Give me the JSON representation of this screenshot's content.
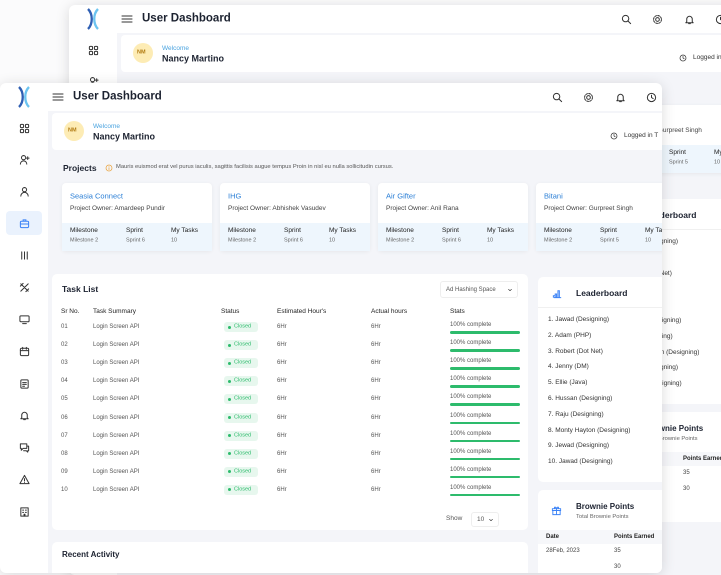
{
  "header": {
    "title": "User Dashboard"
  },
  "welcome": {
    "greeting": "Welcome",
    "name": "Nancy Martino",
    "initials": "NM",
    "logged": "Logged in T"
  },
  "projects": {
    "label": "Projects",
    "note": "Mauris euismod erat vel purus iaculis, sagittis facilisis augue tempus Proin in nisl eu nulla sollicitudin cursus.",
    "cards": [
      {
        "name": "Seasia Connect",
        "owner": "Project Owner: Amardeep Pundir",
        "stats": [
          {
            "label": "Milestone",
            "value": "Milestone 2"
          },
          {
            "label": "Sprint",
            "value": "Sprint 6"
          },
          {
            "label": "My Tasks",
            "value": "10"
          }
        ]
      },
      {
        "name": "IHG",
        "owner": "Project Owner: Abhishek Vasudev",
        "stats": [
          {
            "label": "Milestone",
            "value": "Milestone 2"
          },
          {
            "label": "Sprint",
            "value": "Sprint 6"
          },
          {
            "label": "My Tasks",
            "value": "10"
          }
        ]
      },
      {
        "name": "Air Gifter",
        "owner": "Project Owner: Anil Rana",
        "stats": [
          {
            "label": "Milestone",
            "value": "Milestone 2"
          },
          {
            "label": "Sprint",
            "value": "Sprint 6"
          },
          {
            "label": "My Tasks",
            "value": "10"
          }
        ]
      },
      {
        "name": "Bitani",
        "owner": "Project Owner: Gurpreet Singh",
        "stats": [
          {
            "label": "Milestone",
            "value": "Milestone 2"
          },
          {
            "label": "Sprint",
            "value": "Sprint 5"
          },
          {
            "label": "My Tasks",
            "value": "10"
          }
        ]
      }
    ]
  },
  "tasks": {
    "title": "Task List",
    "filter": "Ad Hashing Space",
    "columns": [
      "Sr No.",
      "Task Summary",
      "Status",
      "Estimated Hour's",
      "Actual hours",
      "Stats"
    ],
    "rows": [
      [
        "01",
        "Login Screen API",
        "Closed",
        "6Hr",
        "6Hr",
        "100% complete"
      ],
      [
        "02",
        "Login Screen API",
        "Closed",
        "6Hr",
        "6Hr",
        "100% complete"
      ],
      [
        "03",
        "Login Screen API",
        "Closed",
        "6Hr",
        "6Hr",
        "100% complete"
      ],
      [
        "04",
        "Login Screen API",
        "Closed",
        "6Hr",
        "6Hr",
        "100% complete"
      ],
      [
        "05",
        "Login Screen API",
        "Closed",
        "6Hr",
        "6Hr",
        "100% complete"
      ],
      [
        "06",
        "Login Screen API",
        "Closed",
        "6Hr",
        "6Hr",
        "100% complete"
      ],
      [
        "07",
        "Login Screen API",
        "Closed",
        "6Hr",
        "6Hr",
        "100% complete"
      ],
      [
        "08",
        "Login Screen API",
        "Closed",
        "6Hr",
        "6Hr",
        "100% complete"
      ],
      [
        "09",
        "Login Screen API",
        "Closed",
        "6Hr",
        "6Hr",
        "100% complete"
      ],
      [
        "10",
        "Login Screen API",
        "Closed",
        "6Hr",
        "6Hr",
        "100% complete"
      ]
    ],
    "show_label": "Show",
    "show_value": "10"
  },
  "leaderboard": {
    "title": "Leaderboard",
    "items": [
      "1. Jawad (Designing)",
      "2. Adam (PHP)",
      "3. Robert (Dot Net)",
      "4. Jenny (DM)",
      "5. Ellie (Java)",
      "6. Hussan (Designing)",
      "7. Raju (Designing)",
      "8. Monty Hayton (Designing)",
      "9. Jewad (Designing)",
      "10. Jawad (Designing)"
    ]
  },
  "brownie": {
    "title": "Brownie Points",
    "subtitle": "Total Brownie Points",
    "columns": [
      "Date",
      "Points Earned"
    ],
    "rows": [
      {
        "date": "28Feb, 2023",
        "points": "35"
      },
      {
        "points": "30"
      }
    ]
  },
  "recent": {
    "title": "Recent Activity"
  }
}
